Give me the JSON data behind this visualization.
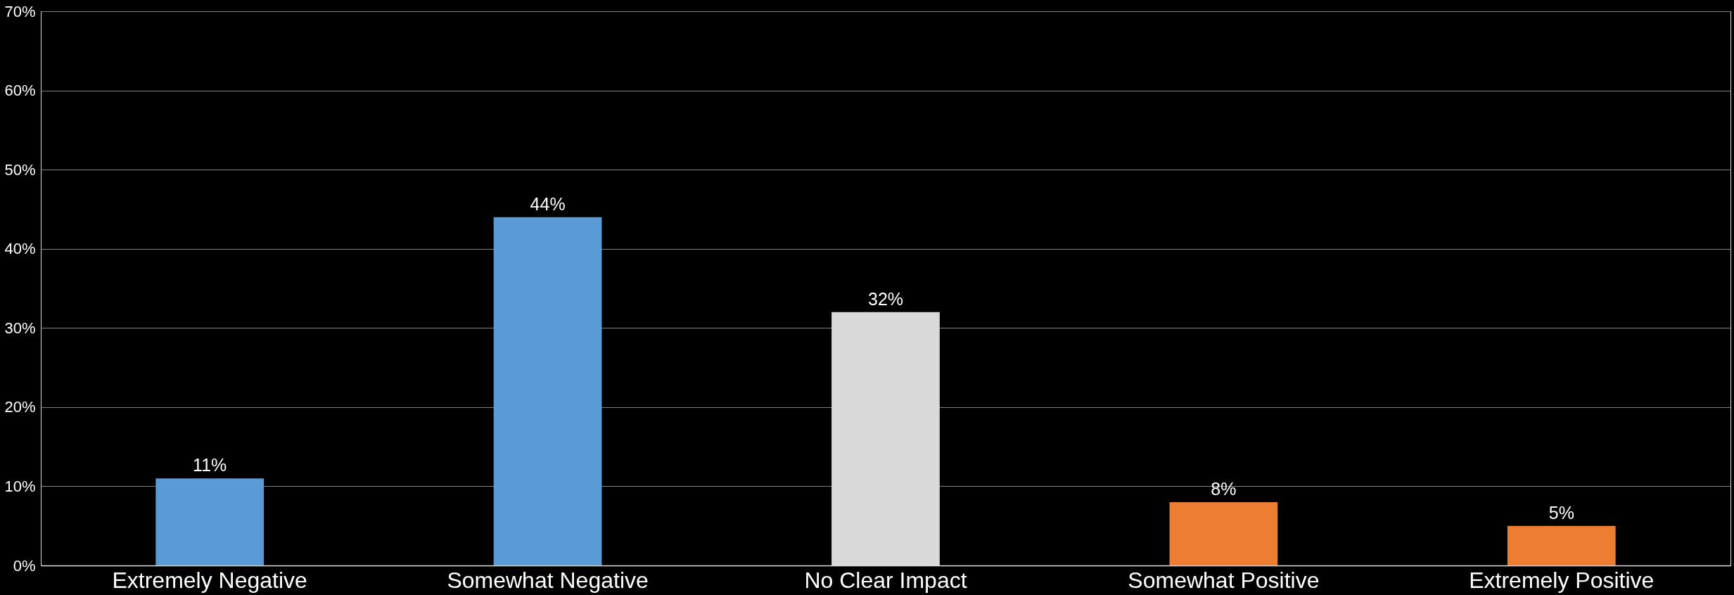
{
  "chart_data": {
    "type": "bar",
    "categories": [
      "Extremely Negative",
      "Somewhat Negative",
      "No Clear Impact",
      "Somewhat Positive",
      "Extremely Positive"
    ],
    "values": [
      11,
      44,
      32,
      8,
      5
    ],
    "colors": [
      "#5b9bd5",
      "#5b9bd5",
      "#d9d9d9",
      "#ed7d31",
      "#ed7d31"
    ],
    "value_labels": [
      "11%",
      "44%",
      "32%",
      "8%",
      "5%"
    ],
    "ylim": [
      0,
      70
    ],
    "yticks": [
      {
        "value": 0,
        "label": "0%"
      },
      {
        "value": 10,
        "label": "10%"
      },
      {
        "value": 20,
        "label": "20%"
      },
      {
        "value": 30,
        "label": "30%"
      },
      {
        "value": 40,
        "label": "40%"
      },
      {
        "value": 50,
        "label": "50%"
      },
      {
        "value": 60,
        "label": "60%"
      },
      {
        "value": 70,
        "label": "70%"
      }
    ],
    "grid": "y",
    "legend": false
  }
}
